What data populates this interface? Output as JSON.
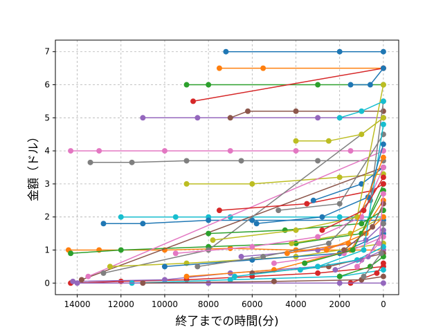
{
  "chart_data": {
    "type": "line",
    "title": "",
    "xlabel": "終了までの時間(分)",
    "ylabel": "金額（ドル）",
    "xlim": [
      15000,
      -700
    ],
    "ylim": [
      -0.35,
      7.35
    ],
    "x_inverted": true,
    "grid": true,
    "grid_style": "dashed",
    "x_ticks": [
      14000,
      12000,
      10000,
      8000,
      6000,
      4000,
      2000,
      0
    ],
    "x_tick_labels": [
      "14000",
      "12000",
      "10000",
      "8000",
      "6000",
      "4000",
      "2000",
      "0"
    ],
    "y_ticks": [
      0,
      1,
      2,
      3,
      4,
      5,
      6,
      7
    ],
    "y_tick_labels": [
      "0",
      "1",
      "2",
      "3",
      "4",
      "5",
      "6",
      "7"
    ],
    "marker": "circle",
    "palette": [
      "#1f77b4",
      "#ff7f0e",
      "#2ca02c",
      "#d62728",
      "#9467bd",
      "#8c564b",
      "#e377c2",
      "#7f7f7f",
      "#bcbd22",
      "#17becf"
    ],
    "series": [
      {
        "x": [
          7200,
          2000,
          0
        ],
        "y": [
          7.0,
          7.0,
          7.0
        ]
      },
      {
        "x": [
          7500,
          5500,
          0
        ],
        "y": [
          6.5,
          6.5,
          6.5
        ]
      },
      {
        "x": [
          9000,
          8000,
          3000,
          0
        ],
        "y": [
          6.0,
          6.0,
          6.0,
          6.0
        ]
      },
      {
        "x": [
          8700,
          0
        ],
        "y": [
          5.5,
          6.5
        ]
      },
      {
        "x": [
          11000,
          8500,
          3000,
          0
        ],
        "y": [
          5.0,
          5.0,
          5.0,
          5.0
        ]
      },
      {
        "x": [
          7000,
          6200,
          4000,
          0
        ],
        "y": [
          5.0,
          5.2,
          5.2,
          5.2
        ]
      },
      {
        "x": [
          14300,
          13000,
          10000,
          7000,
          4000,
          1500,
          0
        ],
        "y": [
          4.0,
          4.0,
          4.0,
          4.0,
          4.0,
          4.0,
          4.0
        ]
      },
      {
        "x": [
          13400,
          11500,
          9000,
          6500,
          3000,
          0
        ],
        "y": [
          3.65,
          3.65,
          3.7,
          3.7,
          3.7,
          3.7
        ]
      },
      {
        "x": [
          9000,
          6000,
          2000,
          0
        ],
        "y": [
          3.0,
          3.0,
          3.2,
          3.3
        ]
      },
      {
        "x": [
          12000,
          9500,
          8000,
          7000,
          2000,
          0
        ],
        "y": [
          2.0,
          2.0,
          2.0,
          2.0,
          2.0,
          2.0
        ]
      },
      {
        "x": [
          12800,
          11000,
          8000,
          6000,
          0
        ],
        "y": [
          1.8,
          1.8,
          1.9,
          1.9,
          1.9
        ]
      },
      {
        "x": [
          14400,
          13000,
          10000,
          7000,
          4000,
          0
        ],
        "y": [
          1.0,
          1.0,
          1.0,
          1.05,
          1.0,
          1.0
        ]
      },
      {
        "x": [
          14300,
          12000,
          8000,
          4000,
          1000,
          0
        ],
        "y": [
          0.9,
          1.0,
          1.1,
          1.2,
          1.5,
          3.0
        ]
      },
      {
        "x": [
          14300,
          12000,
          9000,
          6000,
          3000,
          0
        ],
        "y": [
          0.0,
          0.05,
          0.1,
          0.2,
          0.3,
          0.5
        ]
      },
      {
        "x": [
          14200,
          10000,
          7000,
          3000,
          1000,
          0
        ],
        "y": [
          0.05,
          0.1,
          0.3,
          0.5,
          0.7,
          1.0
        ]
      },
      {
        "x": [
          13800,
          0
        ],
        "y": [
          0.1,
          3.5
        ]
      },
      {
        "x": [
          13500,
          0
        ],
        "y": [
          0.2,
          4.0
        ]
      },
      {
        "x": [
          12800,
          8000,
          0
        ],
        "y": [
          0.3,
          1.0,
          5.0
        ]
      },
      {
        "x": [
          12500,
          9000,
          4000,
          0
        ],
        "y": [
          0.5,
          0.6,
          0.8,
          1.2
        ]
      },
      {
        "x": [
          11500,
          7000,
          2000,
          0
        ],
        "y": [
          0.0,
          0.1,
          0.2,
          0.4
        ]
      },
      {
        "x": [
          10000,
          6000,
          2000,
          0
        ],
        "y": [
          0.5,
          0.7,
          0.9,
          1.5
        ]
      },
      {
        "x": [
          9000,
          5000,
          1500,
          0
        ],
        "y": [
          0.2,
          0.4,
          1.0,
          2.5
        ]
      },
      {
        "x": [
          8000,
          4500,
          1000,
          0
        ],
        "y": [
          1.5,
          1.6,
          1.8,
          2.2
        ]
      },
      {
        "x": [
          7500,
          3500,
          500,
          0
        ],
        "y": [
          2.2,
          2.4,
          2.8,
          3.0
        ]
      },
      {
        "x": [
          6500,
          3000,
          800,
          0
        ],
        "y": [
          0.8,
          1.0,
          1.3,
          1.8
        ]
      },
      {
        "x": [
          6000,
          2500,
          0
        ],
        "y": [
          0.3,
          0.5,
          0.9
        ]
      },
      {
        "x": [
          5000,
          1800,
          0
        ],
        "y": [
          0.6,
          0.9,
          1.4
        ]
      },
      {
        "x": [
          4800,
          2000,
          0
        ],
        "y": [
          2.2,
          2.4,
          4.5
        ]
      },
      {
        "x": [
          4200,
          1500,
          0
        ],
        "y": [
          1.2,
          1.5,
          2.0
        ]
      },
      {
        "x": [
          3800,
          1200,
          0
        ],
        "y": [
          0.4,
          0.7,
          1.1
        ]
      },
      {
        "x": [
          3200,
          1000,
          0
        ],
        "y": [
          2.5,
          3.0,
          3.5
        ]
      },
      {
        "x": [
          2600,
          800,
          0
        ],
        "y": [
          1.0,
          1.5,
          2.0
        ]
      },
      {
        "x": [
          2000,
          600,
          0
        ],
        "y": [
          0.2,
          0.5,
          0.8
        ]
      },
      {
        "x": [
          1500,
          300,
          0
        ],
        "y": [
          0.0,
          0.3,
          0.6
        ]
      },
      {
        "x": [
          14000,
          8000,
          2000,
          0
        ],
        "y": [
          0.0,
          0.0,
          0.0,
          0.0
        ]
      },
      {
        "x": [
          11000,
          5000,
          1000,
          0
        ],
        "y": [
          0.0,
          0.05,
          0.1,
          0.2
        ]
      },
      {
        "x": [
          9500,
          6000,
          3000,
          1000,
          0
        ],
        "y": [
          0.9,
          1.1,
          1.4,
          2.0,
          3.5
        ]
      },
      {
        "x": [
          8500,
          5500,
          2500,
          600,
          0
        ],
        "y": [
          0.5,
          0.8,
          1.2,
          2.5,
          5.5
        ]
      },
      {
        "x": [
          7800,
          4000,
          1200,
          0
        ],
        "y": [
          1.3,
          1.6,
          2.0,
          6.0
        ]
      },
      {
        "x": [
          6800,
          3000,
          900,
          0
        ],
        "y": [
          0.2,
          0.5,
          1.0,
          4.8
        ]
      },
      {
        "x": [
          5800,
          2800,
          700,
          0
        ],
        "y": [
          1.8,
          2.0,
          2.6,
          4.2
        ]
      },
      {
        "x": [
          4400,
          1600,
          0
        ],
        "y": [
          0.9,
          1.2,
          3.8
        ]
      },
      {
        "x": [
          3600,
          1400,
          0
        ],
        "y": [
          0.6,
          1.0,
          2.8
        ]
      },
      {
        "x": [
          2800,
          900,
          0
        ],
        "y": [
          1.6,
          2.2,
          3.2
        ]
      },
      {
        "x": [
          2200,
          700,
          0
        ],
        "y": [
          0.4,
          0.8,
          1.6
        ]
      },
      {
        "x": [
          1800,
          500,
          0
        ],
        "y": [
          1.0,
          1.7,
          2.4
        ]
      },
      {
        "x": [
          1200,
          200,
          0
        ],
        "y": [
          0.5,
          1.2,
          2.7
        ]
      },
      {
        "x": [
          900,
          100,
          0
        ],
        "y": [
          0.2,
          0.9,
          1.8
        ]
      },
      {
        "x": [
          4000,
          2500,
          1000,
          0
        ],
        "y": [
          4.3,
          4.3,
          4.5,
          5.0
        ]
      },
      {
        "x": [
          2000,
          1000,
          0
        ],
        "y": [
          5.0,
          5.2,
          5.5
        ]
      },
      {
        "x": [
          1500,
          600,
          0
        ],
        "y": [
          6.0,
          6.0,
          6.5
        ]
      }
    ]
  }
}
